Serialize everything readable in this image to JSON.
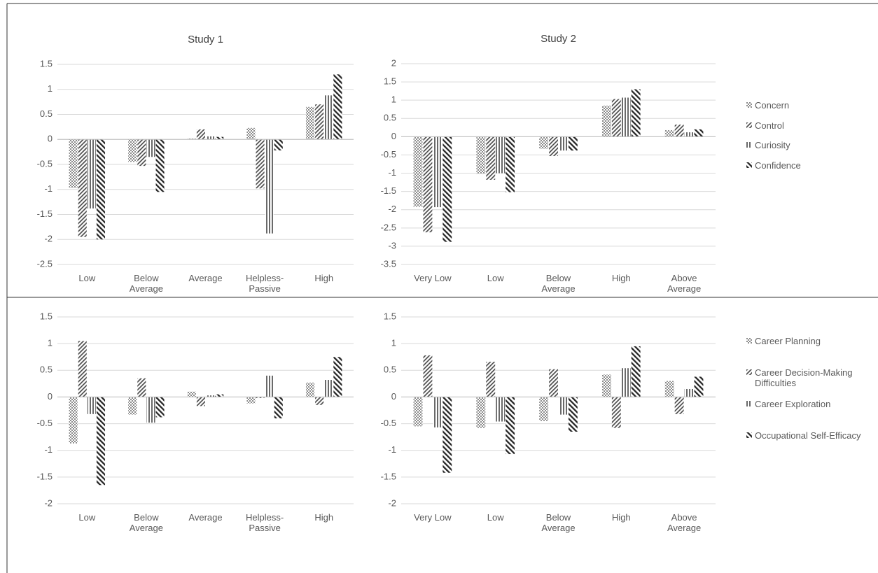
{
  "chart_data": [
    {
      "type": "bar",
      "title": "Study 1",
      "legend": "right",
      "categories": [
        "Low",
        "Below Average",
        "Average",
        "Helpless-Passive",
        "High"
      ],
      "ylim": [
        -2.5,
        1.5
      ],
      "yticks": [
        -2.5,
        -2,
        -1.5,
        -1,
        -0.5,
        0,
        0.5,
        1,
        1.5
      ],
      "grid": true,
      "series": [
        {
          "name": "Concern",
          "color": "#8c8c8c",
          "pattern": "dots",
          "values": [
            -0.97,
            -0.45,
            0.02,
            0.23,
            0.65
          ]
        },
        {
          "name": "Control",
          "color": "#404040",
          "pattern": "slash",
          "values": [
            -1.95,
            -0.53,
            0.2,
            -0.98,
            0.7
          ]
        },
        {
          "name": "Curiosity",
          "color": "#595959",
          "pattern": "vertical",
          "values": [
            -1.38,
            -0.35,
            0.06,
            -1.88,
            0.88
          ]
        },
        {
          "name": "Confidence",
          "color": "#262626",
          "pattern": "backslash",
          "values": [
            -2.0,
            -1.05,
            0.05,
            -0.22,
            1.3
          ]
        }
      ]
    },
    {
      "type": "bar",
      "title": "Study 2",
      "categories": [
        "Very Low",
        "Low",
        "Below Average",
        "High",
        "Above Average"
      ],
      "ylim": [
        -3.5,
        2
      ],
      "yticks": [
        -3.5,
        -3,
        -2.5,
        -2,
        -1.5,
        -1,
        -0.5,
        0,
        0.5,
        1,
        1.5,
        2
      ],
      "grid": true,
      "series": [
        {
          "color": "#8c8c8c",
          "pattern": "dots",
          "values": [
            -1.92,
            -1.02,
            -0.33,
            0.85,
            0.18
          ]
        },
        {
          "color": "#404040",
          "pattern": "slash",
          "values": [
            -2.62,
            -1.18,
            -0.53,
            1.03,
            0.33
          ]
        },
        {
          "color": "#595959",
          "pattern": "vertical",
          "values": [
            -1.93,
            -1.0,
            -0.38,
            1.07,
            0.12
          ]
        },
        {
          "color": "#262626",
          "pattern": "backslash",
          "values": [
            -2.88,
            -1.52,
            -0.38,
            1.3,
            0.2
          ]
        }
      ]
    },
    {
      "type": "bar",
      "legend": "right",
      "categories": [
        "Low",
        "Below Average",
        "Average",
        "Helpless-Passive",
        "High"
      ],
      "ylim": [
        -2,
        1.5
      ],
      "yticks": [
        -2,
        -1.5,
        -1,
        -0.5,
        0,
        0.5,
        1,
        1.5
      ],
      "grid": true,
      "series": [
        {
          "name": "Career Planning",
          "color": "#8c8c8c",
          "pattern": "dots",
          "values": [
            -0.87,
            -0.33,
            0.1,
            -0.12,
            0.27
          ]
        },
        {
          "name": "Career Decision-Making Difficulties",
          "color": "#404040",
          "pattern": "slash",
          "values": [
            1.05,
            0.35,
            -0.17,
            -0.02,
            -0.15
          ]
        },
        {
          "name": "Career Exploration",
          "color": "#595959",
          "pattern": "vertical",
          "values": [
            -0.32,
            -0.48,
            0.03,
            0.4,
            0.32
          ]
        },
        {
          "name": "Occupational Self-Efficacy",
          "color": "#262626",
          "pattern": "backslash",
          "values": [
            -1.65,
            -0.38,
            0.05,
            -0.4,
            0.75
          ]
        }
      ]
    },
    {
      "type": "bar",
      "categories": [
        "Very Low",
        "Low",
        "Below Average",
        "High",
        "Above Average"
      ],
      "ylim": [
        -2,
        1.5
      ],
      "yticks": [
        -2,
        -1.5,
        -1,
        -0.5,
        0,
        0.5,
        1,
        1.5
      ],
      "grid": true,
      "series": [
        {
          "color": "#8c8c8c",
          "pattern": "dots",
          "values": [
            -0.55,
            -0.58,
            -0.45,
            0.42,
            0.3
          ]
        },
        {
          "color": "#404040",
          "pattern": "slash",
          "values": [
            0.78,
            0.66,
            0.52,
            -0.58,
            -0.32
          ]
        },
        {
          "color": "#595959",
          "pattern": "vertical",
          "values": [
            -0.57,
            -0.46,
            -0.33,
            0.54,
            0.15
          ]
        },
        {
          "color": "#262626",
          "pattern": "backslash",
          "values": [
            -1.42,
            -1.07,
            -0.65,
            0.95,
            0.38
          ]
        }
      ]
    }
  ]
}
